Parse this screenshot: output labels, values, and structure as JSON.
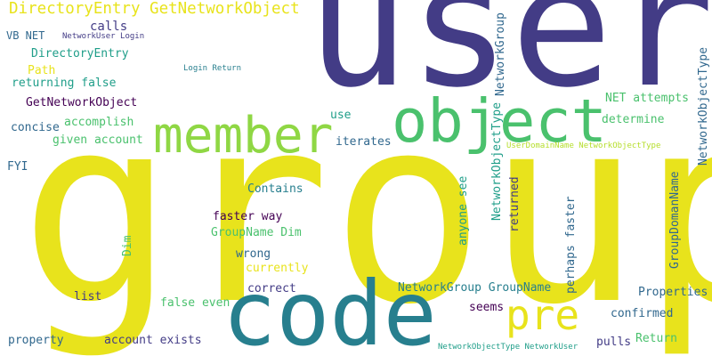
{
  "words": [
    {
      "text": "group",
      "color": "#e8e31c",
      "vertical": false
    },
    {
      "text": "user",
      "color": "#433c86",
      "vertical": false
    },
    {
      "text": "code",
      "color": "#277f8e",
      "vertical": false
    },
    {
      "text": "object",
      "color": "#4ac16d",
      "vertical": false
    },
    {
      "text": "member",
      "color": "#8fd744",
      "vertical": false
    },
    {
      "text": "pre",
      "color": "#e8e31c",
      "vertical": false
    },
    {
      "text": "DirectoryEntry GetNetworkObject",
      "color": "#e8e31c",
      "vertical": false
    },
    {
      "text": "calls",
      "color": "#433c86",
      "vertical": false
    },
    {
      "text": "VB NET",
      "color": "#31688e",
      "vertical": false
    },
    {
      "text": "NetworkUser Login",
      "color": "#433c86",
      "vertical": false
    },
    {
      "text": "DirectoryEntry",
      "color": "#1f9e89",
      "vertical": false
    },
    {
      "text": "Path",
      "color": "#e8e31c",
      "vertical": false
    },
    {
      "text": "Login Return",
      "color": "#277f8e",
      "vertical": false
    },
    {
      "text": "returning false",
      "color": "#1f9e89",
      "vertical": false
    },
    {
      "text": "GetNetworkObject",
      "color": "#440154",
      "vertical": false
    },
    {
      "text": "accomplish",
      "color": "#4ac16d",
      "vertical": false
    },
    {
      "text": "concise",
      "color": "#31688e",
      "vertical": false
    },
    {
      "text": "given account",
      "color": "#4ac16d",
      "vertical": false
    },
    {
      "text": "FYI",
      "color": "#31688e",
      "vertical": false
    },
    {
      "text": "use",
      "color": "#1f9e89",
      "vertical": false
    },
    {
      "text": "iterates",
      "color": "#31688e",
      "vertical": false
    },
    {
      "text": "Contains",
      "color": "#277f8e",
      "vertical": false
    },
    {
      "text": "faster way",
      "color": "#440154",
      "vertical": false
    },
    {
      "text": "GroupName Dim",
      "color": "#4ac16d",
      "vertical": false
    },
    {
      "text": "Dim",
      "color": "#4ac16d",
      "vertical": true
    },
    {
      "text": "wrong",
      "color": "#31688e",
      "vertical": false
    },
    {
      "text": "currently",
      "color": "#e8e31c",
      "vertical": false
    },
    {
      "text": "list",
      "color": "#433c86",
      "vertical": false
    },
    {
      "text": "correct",
      "color": "#433c86",
      "vertical": false
    },
    {
      "text": "false even",
      "color": "#4ac16d",
      "vertical": false
    },
    {
      "text": "property",
      "color": "#31688e",
      "vertical": false
    },
    {
      "text": "account exists",
      "color": "#433c86",
      "vertical": false
    },
    {
      "text": "NetworkGroup GroupName",
      "color": "#277f8e",
      "vertical": false
    },
    {
      "text": "seems",
      "color": "#440154",
      "vertical": false
    },
    {
      "text": "NetworkGroup",
      "color": "#31688e",
      "vertical": true
    },
    {
      "text": "NetworkObjectType",
      "color": "#1f9e89",
      "vertical": true
    },
    {
      "text": "anyone see",
      "color": "#1f9e89",
      "vertical": true
    },
    {
      "text": "returned",
      "color": "#433c86",
      "vertical": true
    },
    {
      "text": "perhaps faster",
      "color": "#31688e",
      "vertical": true
    },
    {
      "text": "UserDomainName NetworkObjectType",
      "color": "#b5de2b",
      "vertical": false
    },
    {
      "text": "NET attempts",
      "color": "#4ac16d",
      "vertical": false
    },
    {
      "text": "determine",
      "color": "#4ac16d",
      "vertical": false
    },
    {
      "text": "NetworkObjectType",
      "color": "#31688e",
      "vertical": true
    },
    {
      "text": "GroupDomanName",
      "color": "#31688e",
      "vertical": true
    },
    {
      "text": "Properties",
      "color": "#31688e",
      "vertical": false
    },
    {
      "text": "confirmed",
      "color": "#31688e",
      "vertical": false
    },
    {
      "text": "pulls",
      "color": "#433c86",
      "vertical": false
    },
    {
      "text": "Return",
      "color": "#4ac16d",
      "vertical": false
    },
    {
      "text": "NetworkObjectType NetworkUser",
      "color": "#1f9e89",
      "vertical": false
    }
  ]
}
